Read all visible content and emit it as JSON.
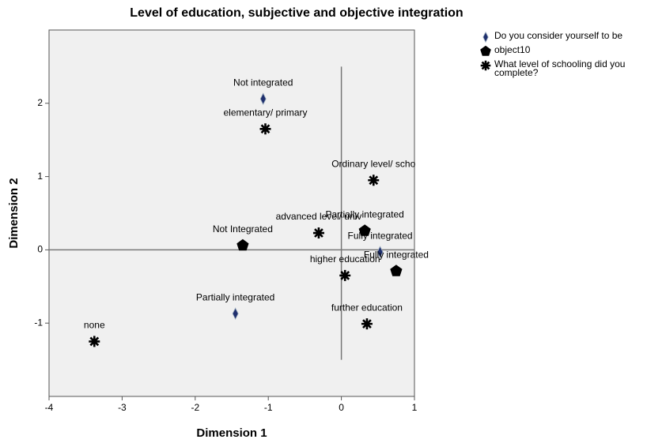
{
  "chart_data": {
    "type": "scatter",
    "title": "Level of education, subjective and objective integration",
    "xlabel": "Dimension 1",
    "ylabel": "Dimension 2",
    "xlim": [
      -4,
      1
    ],
    "ylim": [
      -2,
      3
    ],
    "xticks": [
      -4,
      -3,
      -2,
      -1,
      0,
      1
    ],
    "yticks": [
      -1,
      0,
      1,
      2
    ],
    "legend": "right",
    "series": [
      {
        "name": "Do you consider yourself to be",
        "marker": "diamond",
        "color": "#1f2f6e",
        "labels": [
          "Not integrated",
          "Partially integrated",
          "Fully integrated"
        ],
        "x": [
          -1.07,
          -1.45,
          0.53
        ],
        "values": [
          2.06,
          -0.87,
          -0.03
        ]
      },
      {
        "name": "object10",
        "marker": "pentagon",
        "color": "#000000",
        "labels": [
          "Not Integrated",
          "Partially integrated",
          "Fully integrated"
        ],
        "x": [
          -1.35,
          0.32,
          0.75
        ],
        "values": [
          0.06,
          0.26,
          -0.29
        ]
      },
      {
        "name": "What level of schooling did you complete?",
        "marker": "star",
        "color": "#000000",
        "labels": [
          "elementary/ primary",
          "Ordinary level/ scho",
          "advanced level/ univ",
          "higher education",
          "further education",
          "none"
        ],
        "x": [
          -1.04,
          0.44,
          -0.31,
          0.05,
          0.35,
          -3.38
        ],
        "values": [
          1.65,
          0.95,
          0.23,
          -0.35,
          -1.01,
          -1.25
        ]
      }
    ]
  }
}
